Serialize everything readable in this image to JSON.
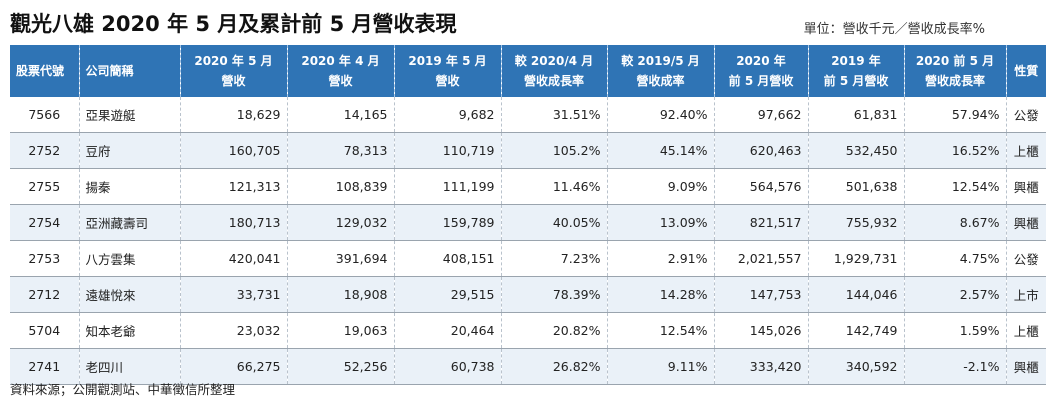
{
  "title": "觀光八雄 2020 年 5 月及累計前 5 月營收表現",
  "unit_note": "單位：營收千元／營收成長率%",
  "headers": [
    [
      "股票代號"
    ],
    [
      "公司簡稱"
    ],
    [
      "2020 年 5 月",
      "營收"
    ],
    [
      "2020 年 4 月",
      "營收"
    ],
    [
      "2019 年 5 月",
      "營收"
    ],
    [
      "較 2020/4 月",
      "營收成長率"
    ],
    [
      "較 2019/5 月",
      "營收成率"
    ],
    [
      "2020 年",
      "前 5 月營收"
    ],
    [
      "2019 年",
      "前 5 月營收"
    ],
    [
      "2020 前 5 月",
      "營收成長率"
    ],
    [
      "性質"
    ]
  ],
  "rows": [
    [
      "7566",
      "亞果遊艇",
      "18,629",
      "14,165",
      "9,682",
      "31.51%",
      "92.40%",
      "97,662",
      "61,831",
      "57.94%",
      "公發"
    ],
    [
      "2752",
      "豆府",
      "160,705",
      "78,313",
      "110,719",
      "105.2%",
      "45.14%",
      "620,463",
      "532,450",
      "16.52%",
      "上櫃"
    ],
    [
      "2755",
      "揚秦",
      "121,313",
      "108,839",
      "111,199",
      "11.46%",
      "9.09%",
      "564,576",
      "501,638",
      "12.54%",
      "興櫃"
    ],
    [
      "2754",
      "亞洲藏壽司",
      "180,713",
      "129,032",
      "159,789",
      "40.05%",
      "13.09%",
      "821,517",
      "755,932",
      "8.67%",
      "興櫃"
    ],
    [
      "2753",
      "八方雲集",
      "420,041",
      "391,694",
      "408,151",
      "7.23%",
      "2.91%",
      "2,021,557",
      "1,929,731",
      "4.75%",
      "公發"
    ],
    [
      "2712",
      "遠雄悅來",
      "33,731",
      "18,908",
      "29,515",
      "78.39%",
      "14.28%",
      "147,753",
      "144,046",
      "2.57%",
      "上市"
    ],
    [
      "5704",
      "知本老爺",
      "23,032",
      "19,063",
      "20,464",
      "20.82%",
      "12.54%",
      "145,026",
      "142,749",
      "1.59%",
      "上櫃"
    ],
    [
      "2741",
      "老四川",
      "66,275",
      "52,256",
      "60,738",
      "26.82%",
      "9.11%",
      "333,420",
      "340,592",
      "-2.1%",
      "興櫃"
    ]
  ],
  "source": "資料來源；公開觀測站、中華徵信所整理",
  "colors": {
    "header_bg": "#2f74b5",
    "alt_row_bg": "#eaf1f8"
  }
}
